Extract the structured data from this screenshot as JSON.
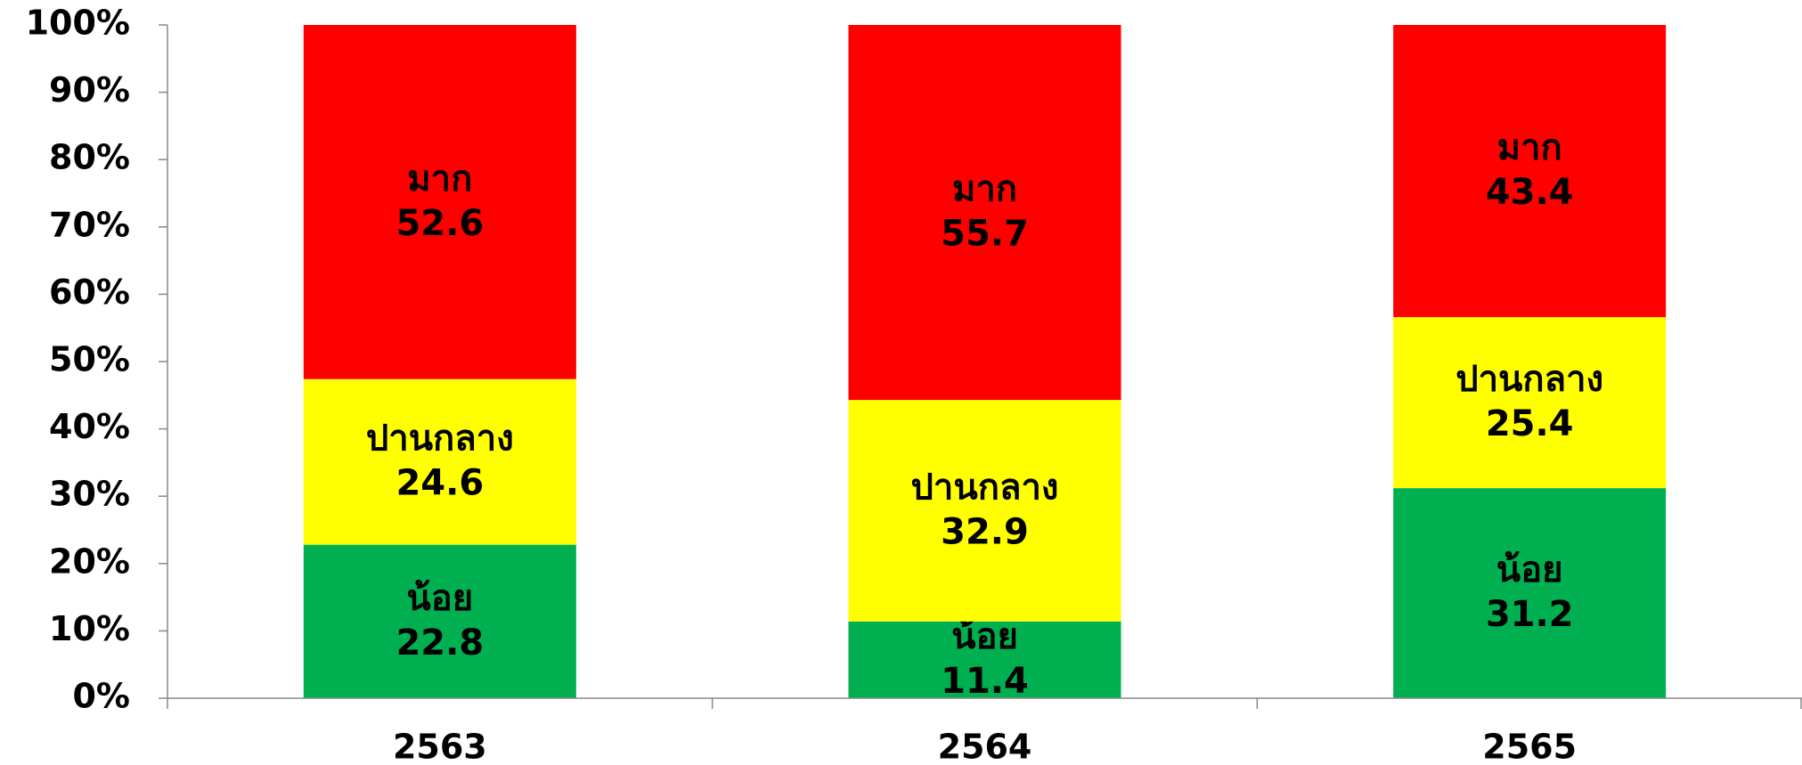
{
  "chart_data": {
    "type": "stacked_bar_percent",
    "categories": [
      "2563",
      "2564",
      "2565"
    ],
    "series": [
      {
        "name": "น้อย",
        "color": "#00b050",
        "values": [
          22.8,
          11.4,
          31.2
        ]
      },
      {
        "name": "ปานกลาง",
        "color": "#ffff00",
        "values": [
          24.6,
          32.9,
          25.4
        ]
      },
      {
        "name": "มาก",
        "color": "#ff0000",
        "values": [
          52.6,
          55.7,
          43.4
        ]
      }
    ],
    "ylim": [
      0,
      100
    ],
    "yticks": [
      {
        "value": 0,
        "label": "0%"
      },
      {
        "value": 10,
        "label": "10%"
      },
      {
        "value": 20,
        "label": "20%"
      },
      {
        "value": 30,
        "label": "30%"
      },
      {
        "value": 40,
        "label": "40%"
      },
      {
        "value": 50,
        "label": "50%"
      },
      {
        "value": 60,
        "label": "60%"
      },
      {
        "value": 70,
        "label": "70%"
      },
      {
        "value": 80,
        "label": "80%"
      },
      {
        "value": 90,
        "label": "90%"
      },
      {
        "value": 100,
        "label": "100%"
      }
    ]
  }
}
